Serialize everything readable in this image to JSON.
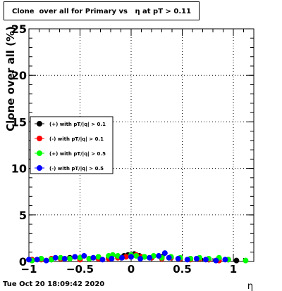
{
  "chart_data": {
    "type": "scatter",
    "title": "Clone  over all for Primary vs   η at pT > 0.11",
    "xlabel": "η",
    "ylabel": "Clone  over all (%)",
    "xlim": [
      -1.0,
      1.2
    ],
    "ylim": [
      0,
      25
    ],
    "x_ticks": [
      -1,
      -0.5,
      0,
      0.5,
      1
    ],
    "x_tick_labels": [
      "−1",
      "−0.5",
      "0",
      "0.5",
      "1"
    ],
    "y_ticks": [
      0,
      5,
      10,
      15,
      20,
      25
    ],
    "y_tick_labels": [
      "0",
      "5",
      "10",
      "15",
      "20",
      "25"
    ],
    "grid": true,
    "legend_position": "left-middle",
    "series": [
      {
        "name": "(+) with pT/|q| > 0.1",
        "color": "#000000",
        "x": [
          -0.97,
          -0.88,
          -0.78,
          -0.69,
          -0.6,
          -0.5,
          -0.41,
          -0.32,
          -0.22,
          -0.13,
          -0.07,
          -0.03,
          0.03,
          0.08,
          0.13,
          0.2,
          0.3,
          0.39,
          0.48,
          0.58,
          0.67,
          0.76,
          0.86,
          0.95,
          1.03
        ],
        "y": [
          0.2,
          0.3,
          0.2,
          0.3,
          0.4,
          0.3,
          0.3,
          0.3,
          0.4,
          0.5,
          0.6,
          0.7,
          0.8,
          0.6,
          0.5,
          0.4,
          0.5,
          0.4,
          0.3,
          0.3,
          0.3,
          0.2,
          0.3,
          0.2,
          0.1
        ]
      },
      {
        "name": "(-) with pT/|q| > 0.1",
        "color": "#ff0000",
        "x": [
          -0.97,
          -0.88,
          -0.78,
          -0.69,
          -0.6,
          -0.5,
          -0.41,
          -0.32,
          -0.22,
          -0.13,
          -0.05,
          0.0,
          0.05,
          0.1,
          0.2,
          0.3,
          0.39,
          0.48,
          0.58,
          0.67,
          0.76,
          0.86,
          0.95
        ],
        "y": [
          0.2,
          0.2,
          0.3,
          0.3,
          0.3,
          0.2,
          0.3,
          0.3,
          0.3,
          0.4,
          0.5,
          0.6,
          0.7,
          0.5,
          0.4,
          0.3,
          0.4,
          0.3,
          0.2,
          0.3,
          0.2,
          0.1,
          0.2
        ]
      },
      {
        "name": "(+) with pT/|q| > 0.5",
        "color": "#00ff00",
        "x": [
          -0.97,
          -0.88,
          -0.78,
          -0.69,
          -0.6,
          -0.5,
          -0.41,
          -0.32,
          -0.22,
          -0.18,
          -0.13,
          0.0,
          0.05,
          0.13,
          0.22,
          0.3,
          0.39,
          0.48,
          0.58,
          0.67,
          0.76,
          0.86,
          0.95,
          1.12
        ],
        "y": [
          0.1,
          0.3,
          0.2,
          0.4,
          0.3,
          0.4,
          0.3,
          0.5,
          0.6,
          0.7,
          0.6,
          0.7,
          0.6,
          0.5,
          0.6,
          0.4,
          0.5,
          0.4,
          0.3,
          0.4,
          0.3,
          0.4,
          0.2,
          0.1
        ]
      },
      {
        "name": "(-) with pT/|q| > 0.5",
        "color": "#0000ff",
        "x": [
          -1.0,
          -0.92,
          -0.83,
          -0.74,
          -0.65,
          -0.55,
          -0.46,
          -0.37,
          -0.28,
          -0.19,
          -0.09,
          0.0,
          0.09,
          0.18,
          0.27,
          0.33,
          0.37,
          0.46,
          0.55,
          0.64,
          0.73,
          0.83,
          0.92
        ],
        "y": [
          0.2,
          0.2,
          0.1,
          0.4,
          0.3,
          0.5,
          0.6,
          0.4,
          0.2,
          0.3,
          0.4,
          0.5,
          0.3,
          0.4,
          0.6,
          0.9,
          0.4,
          0.3,
          0.2,
          0.3,
          0.2,
          0.1,
          0.2
        ]
      }
    ]
  },
  "footer": "Tue Oct 20 18:09:42 2020"
}
